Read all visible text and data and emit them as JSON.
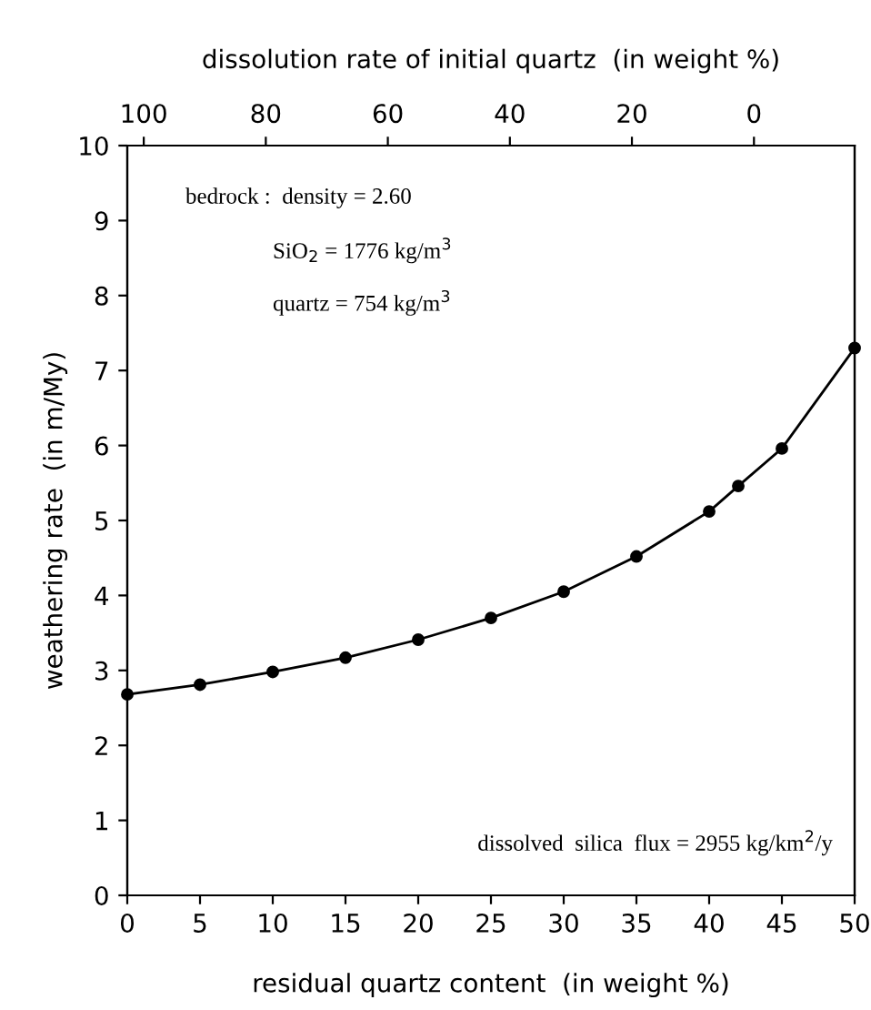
{
  "chart_data": {
    "type": "line",
    "xlabel": "residual quartz content  (in weight %)",
    "ylabel": "weathering rate  (in m/My)",
    "x2label": "dissolution rate of initial quartz  (in weight %)",
    "x": [
      0,
      5,
      10,
      15,
      20,
      25,
      30,
      35,
      40,
      42,
      45,
      50
    ],
    "series": [
      {
        "color": "#000000",
        "values": [
          2.68,
          2.81,
          2.98,
          3.17,
          3.41,
          3.7,
          4.05,
          4.52,
          5.12,
          5.46,
          5.96,
          7.3
        ]
      }
    ],
    "marker": "circle",
    "line_style": "solid",
    "grid": false,
    "legend": false,
    "xlim": [
      0,
      50
    ],
    "xticks": [
      0,
      5,
      10,
      15,
      20,
      25,
      30,
      35,
      40,
      45,
      50
    ],
    "ylim": [
      0,
      10
    ],
    "yticks": [
      0,
      1,
      2,
      3,
      4,
      5,
      6,
      7,
      8,
      9,
      10
    ],
    "x2lim": [
      102.7,
      -16.5
    ],
    "x2ticks": [
      100,
      80,
      60,
      40,
      20,
      0
    ],
    "annotations": [
      "bedrock :  density = 2.60",
      "SiO$_{2}$ = 1776 kg/m$^{3}$",
      "quartz = 754 kg/m$^{3}$",
      "dissolved  silica  flux = 2955 kg/km$^{2}$/y"
    ]
  }
}
